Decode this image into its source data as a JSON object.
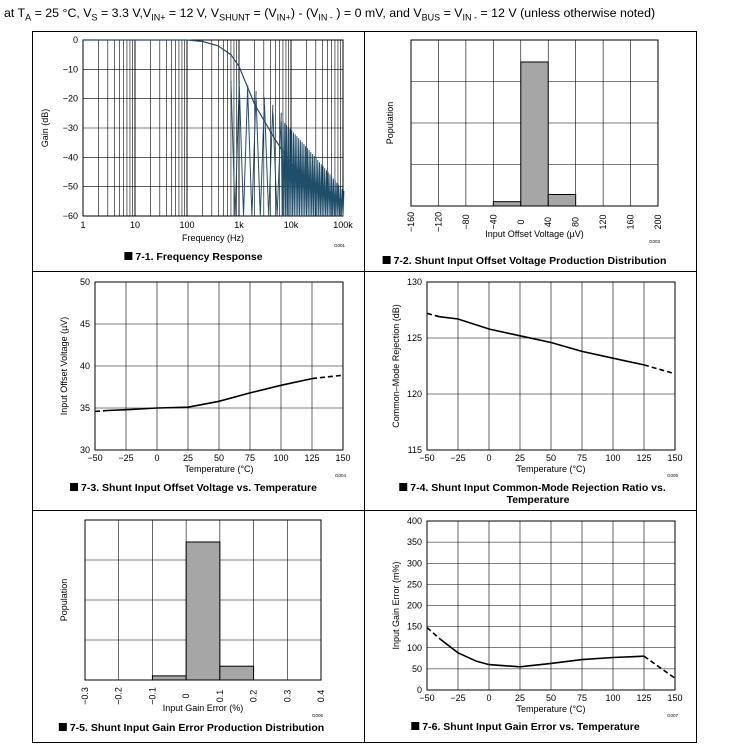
{
  "header": {
    "conditions": "at T_A = 25 °C, V_S = 3.3 V,V_IN+ = 12 V, V_SHUNT = (V_IN+) − (V_IN−) = 0 mV, and V_BUS = V_IN− = 12 V (unless otherwise noted)",
    "p1": "at T",
    "s1": "A",
    "p2": " = 25 °C, V",
    "s2": "S",
    "p3": " = 3.3 V,V",
    "s3": "IN+",
    "p4": " = 12 V, V",
    "s4": "SHUNT",
    "p5": " = (V",
    "s5": "IN+",
    "p6": ")  ‐  (V",
    "s6": "IN -",
    "p7": " ) = 0 mV, and V",
    "s7": "BUS",
    "p8": " = V",
    "s8": "IN -",
    "p9": " = 12 V (unless otherwise noted)"
  },
  "chart_data": [
    {
      "id": "fig1",
      "type": "line",
      "xscale": "log",
      "caption": "7-1. Frequency Response",
      "code": "G001",
      "xlabel": "Frequency (Hz)",
      "ylabel": "Gain (dB)",
      "xlim": [
        1,
        100000
      ],
      "ylim": [
        -60,
        0
      ],
      "xticks": [
        "1",
        "10",
        "100",
        "1k",
        "10k",
        "100k"
      ],
      "yticks": [
        "0",
        "−10",
        "−20",
        "−30",
        "−40",
        "−50",
        "−60"
      ],
      "series": [
        {
          "name": "Gain",
          "x": [
            1,
            100,
            200,
            400,
            700,
            1000,
            2000,
            5000,
            10000,
            20000,
            50000,
            100000
          ],
          "y": [
            0,
            0,
            -0.5,
            -2,
            -5,
            -9,
            -22,
            -34,
            -42,
            -48,
            -53,
            -56
          ]
        }
      ]
    },
    {
      "id": "fig2",
      "type": "histogram",
      "caption": "7-2. Shunt Input Offset Voltage Production Distribution",
      "code": "G003",
      "xlabel": "Input Offset Voltage (µV)",
      "ylabel": "Population",
      "xticks": [
        "−160",
        "−120",
        "−80",
        "−40",
        "0",
        "40",
        "80",
        "120",
        "160",
        "200"
      ],
      "bins": [
        -40,
        0,
        40,
        80
      ],
      "values": [
        3,
        100,
        8
      ]
    },
    {
      "id": "fig3",
      "type": "line",
      "caption": "7-3. Shunt Input Offset Voltage vs. Temperature",
      "code": "G004",
      "xlabel": "Temperature (°C)",
      "ylabel": "Input Offset Voltage (µV)",
      "xlim": [
        -50,
        150
      ],
      "ylim": [
        30,
        50
      ],
      "xticks": [
        "−50",
        "−25",
        "0",
        "25",
        "50",
        "75",
        "100",
        "125",
        "150"
      ],
      "yticks": [
        "30",
        "35",
        "40",
        "45",
        "50"
      ],
      "series": [
        {
          "name": "measured",
          "style": "solid",
          "x": [
            -40,
            -25,
            0,
            25,
            50,
            75,
            100,
            125
          ],
          "y": [
            34.7,
            34.8,
            35.0,
            35.1,
            35.8,
            36.8,
            37.7,
            38.5
          ]
        },
        {
          "name": "extrapolated",
          "style": "dashed",
          "x": [
            -50,
            -40
          ],
          "y": [
            34.6,
            34.7
          ]
        },
        {
          "name": "extrapolated",
          "style": "dashed",
          "x": [
            125,
            150
          ],
          "y": [
            38.5,
            38.9
          ]
        }
      ]
    },
    {
      "id": "fig4",
      "type": "line",
      "caption": "7-4. Shunt Input Common-Mode Rejection Ratio vs. Temperature",
      "caption1": "7-4. Shunt Input Common-Mode Rejection Ratio vs.",
      "caption2": "Temperature",
      "code": "G005",
      "xlabel": "Temperature (°C)",
      "ylabel": "Common–Mode Rejection (dB)",
      "xlim": [
        -50,
        150
      ],
      "ylim": [
        115,
        130
      ],
      "xticks": [
        "−50",
        "−25",
        "0",
        "25",
        "50",
        "75",
        "100",
        "125",
        "150"
      ],
      "yticks": [
        "115",
        "120",
        "125",
        "130"
      ],
      "series": [
        {
          "name": "measured",
          "style": "solid",
          "x": [
            -40,
            -25,
            0,
            25,
            50,
            75,
            100,
            125
          ],
          "y": [
            126.9,
            126.7,
            125.8,
            125.2,
            124.6,
            123.8,
            123.2,
            122.6
          ]
        },
        {
          "name": "extrapolated",
          "style": "dashed",
          "x": [
            -50,
            -40
          ],
          "y": [
            127.2,
            126.9
          ]
        },
        {
          "name": "extrapolated",
          "style": "dashed",
          "x": [
            125,
            150
          ],
          "y": [
            122.6,
            121.8
          ]
        }
      ]
    },
    {
      "id": "fig5",
      "type": "histogram",
      "caption": "7-5. Shunt Input Gain Error Production Distribution",
      "code": "G006",
      "xlabel": "Input Gain Error (%)",
      "ylabel": "Population",
      "xticks": [
        "−0.3",
        "−0.2",
        "−0.1",
        "0",
        "0.1",
        "0.2",
        "0.3",
        "0.4"
      ],
      "bins": [
        -0.1,
        0,
        0.1,
        0.2
      ],
      "values": [
        3,
        100,
        10
      ]
    },
    {
      "id": "fig6",
      "type": "line",
      "caption": "7-6. Shunt Input Gain Error vs. Temperature",
      "code": "G007",
      "xlabel": "Temperature (°C)",
      "ylabel": "Input Gain Error (m%)",
      "xlim": [
        -50,
        150
      ],
      "ylim": [
        0,
        400
      ],
      "xticks": [
        "−50",
        "−25",
        "0",
        "25",
        "50",
        "75",
        "100",
        "125",
        "150"
      ],
      "yticks": [
        "0",
        "50",
        "100",
        "150",
        "200",
        "250",
        "300",
        "350",
        "400"
      ],
      "series": [
        {
          "name": "measured",
          "style": "solid",
          "x": [
            -40,
            -25,
            -10,
            0,
            25,
            50,
            75,
            100,
            125
          ],
          "y": [
            122,
            88,
            68,
            60,
            55,
            63,
            72,
            77,
            80
          ]
        },
        {
          "name": "extrapolated",
          "style": "dashed",
          "x": [
            -50,
            -40
          ],
          "y": [
            148,
            122
          ]
        },
        {
          "name": "extrapolated",
          "style": "dashed",
          "x": [
            125,
            150
          ],
          "y": [
            80,
            28
          ]
        }
      ]
    }
  ]
}
